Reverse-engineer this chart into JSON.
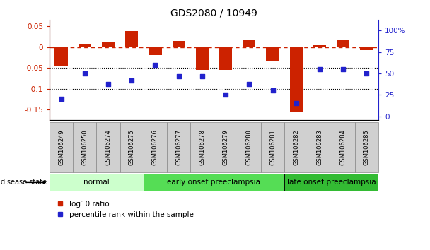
{
  "title": "GDS2080 / 10949",
  "samples": [
    "GSM106249",
    "GSM106250",
    "GSM106274",
    "GSM106275",
    "GSM106276",
    "GSM106277",
    "GSM106278",
    "GSM106279",
    "GSM106280",
    "GSM106281",
    "GSM106282",
    "GSM106283",
    "GSM106284",
    "GSM106285"
  ],
  "log10_ratio": [
    -0.045,
    0.007,
    0.012,
    0.038,
    -0.02,
    0.015,
    -0.055,
    -0.055,
    0.018,
    -0.035,
    -0.155,
    0.005,
    0.018,
    -0.008
  ],
  "percentile_rank": [
    20,
    50,
    38,
    42,
    60,
    47,
    47,
    25,
    38,
    30,
    15,
    55,
    55,
    50
  ],
  "groups": [
    {
      "label": "normal",
      "start": 0,
      "end": 4,
      "color": "#ccffcc"
    },
    {
      "label": "early onset preeclampsia",
      "start": 4,
      "end": 10,
      "color": "#55dd55"
    },
    {
      "label": "late onset preeclampsia",
      "start": 10,
      "end": 14,
      "color": "#33bb33"
    }
  ],
  "left_yticks": [
    0.05,
    0.0,
    -0.05,
    -0.1,
    -0.15
  ],
  "left_yticklabels": [
    "0.05",
    "0",
    "-0.05",
    "-0.1",
    "-0.15"
  ],
  "right_yticks": [
    100,
    75,
    50,
    25,
    0
  ],
  "right_yticklabels": [
    "100%",
    "75",
    "50",
    "25",
    "0"
  ],
  "bar_color": "#cc2200",
  "dot_color": "#2222cc",
  "ylim_left": [
    -0.175,
    0.065
  ],
  "ylim_right": [
    -4.375,
    112.5
  ],
  "bar_width": 0.55,
  "legend_labels": [
    "log10 ratio",
    "percentile rank within the sample"
  ]
}
